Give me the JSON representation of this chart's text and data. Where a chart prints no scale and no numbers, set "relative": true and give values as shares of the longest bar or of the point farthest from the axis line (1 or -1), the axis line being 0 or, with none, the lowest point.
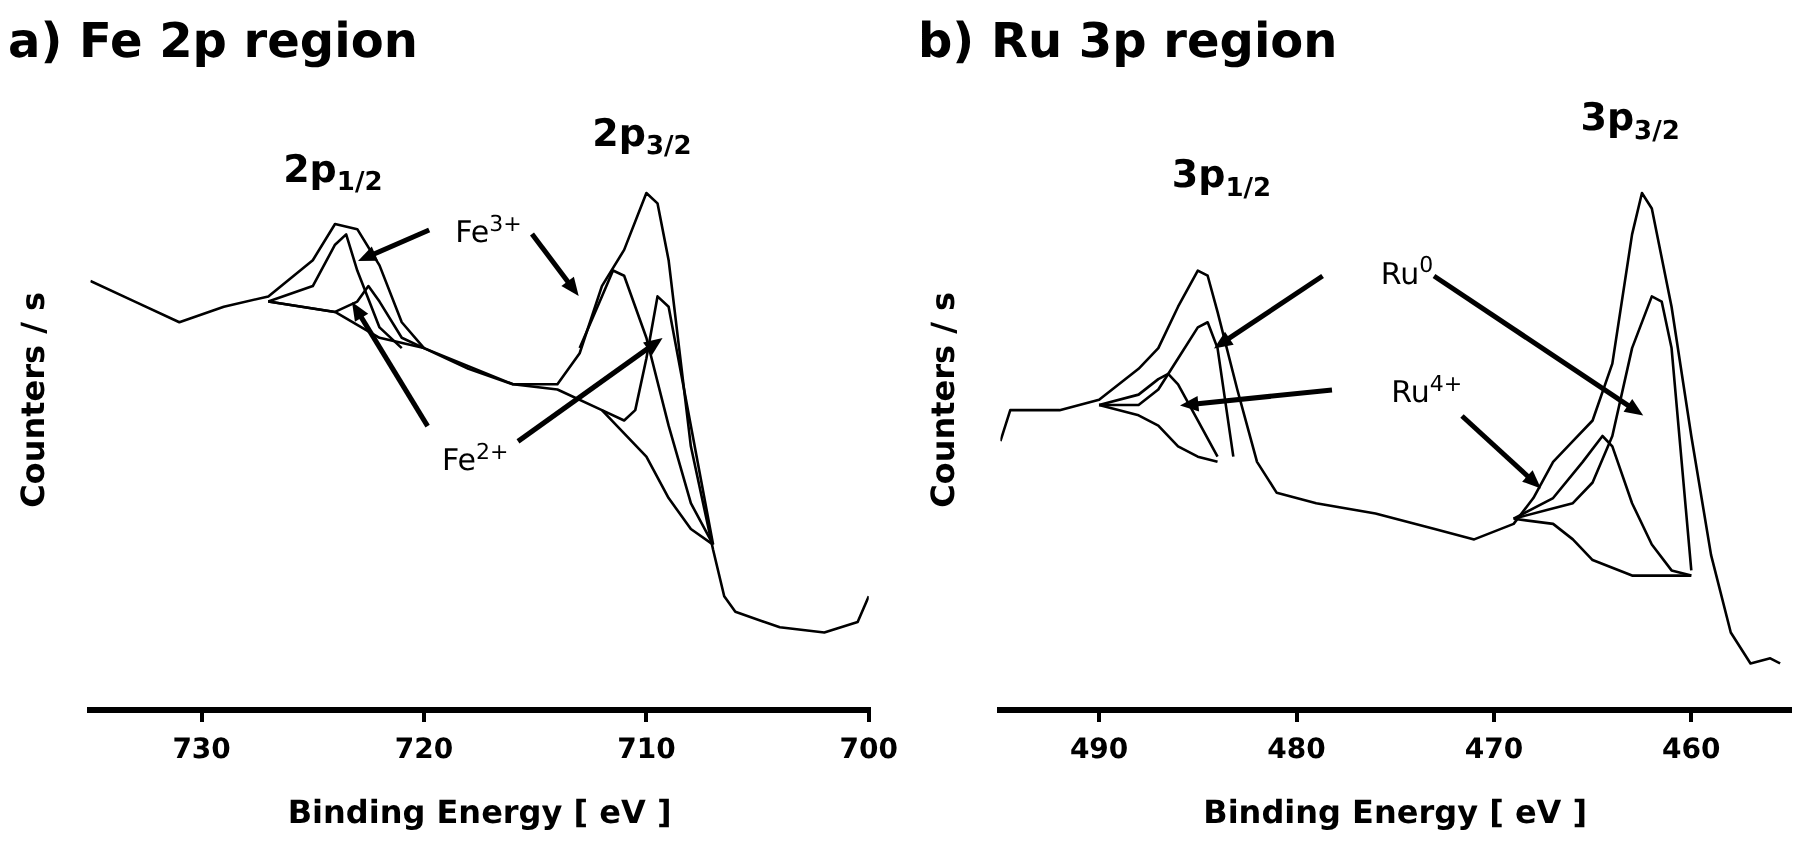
{
  "chart_data": [
    {
      "type": "line",
      "title": "a) Fe 2p region",
      "xlabel": "Binding Energy [ eV ]",
      "ylabel": "Counters / s",
      "relative": true,
      "xlim": [
        735,
        700
      ],
      "xticks": [
        730,
        720,
        710,
        700
      ],
      "grid": false,
      "legend": false,
      "marker": "none",
      "series": [
        {
          "color": "#000000",
          "x": [
            735,
            733,
            731,
            729,
            727,
            725,
            724,
            723,
            722,
            721,
            720,
            718,
            716,
            714,
            713,
            712,
            711,
            710,
            709.5,
            709,
            708,
            707,
            706.5,
            706,
            704,
            702,
            700.5,
            700
          ],
          "values": [
            0.83,
            0.79,
            0.75,
            0.78,
            0.8,
            0.87,
            0.94,
            0.93,
            0.86,
            0.75,
            0.7,
            0.66,
            0.63,
            0.63,
            0.69,
            0.82,
            0.89,
            1,
            0.98,
            0.87,
            0.51,
            0.31,
            0.22,
            0.19,
            0.16,
            0.15,
            0.17,
            0.22
          ]
        },
        {
          "color": "#000000",
          "x": [
            727,
            724,
            722,
            720,
            716,
            714,
            712,
            710,
            709,
            708,
            707
          ],
          "values": [
            0.79,
            0.77,
            0.72,
            0.7,
            0.63,
            0.62,
            0.58,
            0.49,
            0.41,
            0.35,
            0.32
          ]
        },
        {
          "color": "#000000",
          "x": [
            727,
            725,
            724,
            723.5,
            723,
            722,
            721,
            715,
            713,
            712,
            711.5,
            711,
            710,
            709,
            708,
            707
          ],
          "values": [
            0.79,
            0.82,
            0.9,
            0.92,
            0.85,
            0.74,
            0.7,
            null,
            0.7,
            0.8,
            0.85,
            0.84,
            0.72,
            0.55,
            0.4,
            0.32
          ]
        },
        {
          "color": "#000000",
          "x": [
            727,
            724,
            723,
            722.5,
            722,
            721,
            720,
            715,
            712,
            711,
            710.5,
            710,
            709.5,
            709,
            708,
            707
          ],
          "values": [
            0.79,
            0.77,
            0.79,
            0.82,
            0.79,
            0.72,
            0.7,
            null,
            0.58,
            0.56,
            0.58,
            0.68,
            0.8,
            0.78,
            0.55,
            0.32
          ]
        }
      ],
      "annotations": [
        "2p$_{1/2}$",
        "2p$_{3/2}$",
        "Fe$^{3+}$",
        "Fe$^{2+}$"
      ]
    },
    {
      "type": "line",
      "title": "b) Ru 3p region",
      "xlabel": "Binding Energy [ eV ]",
      "ylabel": "Counters / s",
      "relative": true,
      "xlim": [
        495,
        455
      ],
      "xticks": [
        490,
        480,
        470,
        460
      ],
      "grid": false,
      "legend": false,
      "marker": "none",
      "series": [
        {
          "color": "#000000",
          "x": [
            495,
            494.5,
            492,
            491,
            490,
            488,
            487,
            486,
            485,
            484.5,
            484,
            483,
            482,
            481,
            479,
            476,
            473,
            471,
            469,
            468,
            467,
            466,
            465,
            464,
            463,
            462.5,
            462,
            461,
            460,
            459,
            458,
            457,
            456,
            455.5
          ],
          "values": [
            0.52,
            0.58,
            0.58,
            0.59,
            0.6,
            0.66,
            0.7,
            0.78,
            0.85,
            0.84,
            0.77,
            0.62,
            0.48,
            0.42,
            0.4,
            0.38,
            0.35,
            0.33,
            0.36,
            0.41,
            0.48,
            0.52,
            0.56,
            0.67,
            0.92,
            1,
            0.97,
            0.78,
            0.53,
            0.3,
            0.15,
            0.09,
            0.1,
            0.09
          ]
        },
        {
          "color": "#000000",
          "x": [
            490,
            488,
            487,
            486,
            485,
            484,
            476,
            469,
            467,
            466,
            465,
            463,
            461,
            460
          ],
          "values": [
            0.59,
            0.57,
            0.55,
            0.51,
            0.49,
            0.48,
            null,
            0.37,
            0.36,
            0.33,
            0.29,
            0.26,
            0.26,
            0.26
          ]
        },
        {
          "color": "#000000",
          "x": [
            490,
            488,
            487,
            486.5,
            486,
            485,
            484,
            476,
            469,
            467,
            465.5,
            464.5,
            464,
            463,
            462,
            461,
            460
          ],
          "values": [
            0.59,
            0.61,
            0.64,
            0.65,
            0.63,
            0.56,
            0.49,
            null,
            0.37,
            0.41,
            0.48,
            0.53,
            0.51,
            0.4,
            0.32,
            0.27,
            0.26
          ]
        },
        {
          "color": "#000000",
          "x": [
            490,
            488,
            487,
            486,
            485,
            484.5,
            484,
            483.2,
            476,
            469,
            466,
            465,
            464,
            463,
            462,
            461.5,
            461,
            460
          ],
          "values": [
            0.59,
            0.59,
            0.62,
            0.68,
            0.74,
            0.75,
            0.7,
            0.49,
            null,
            0.37,
            0.4,
            0.44,
            0.53,
            0.7,
            0.8,
            0.79,
            0.7,
            0.27
          ]
        }
      ],
      "annotations": [
        "3p$_{1/2}$",
        "3p$_{3/2}$",
        "Ru$^{0}$",
        "Ru$^{4+}$"
      ]
    }
  ]
}
